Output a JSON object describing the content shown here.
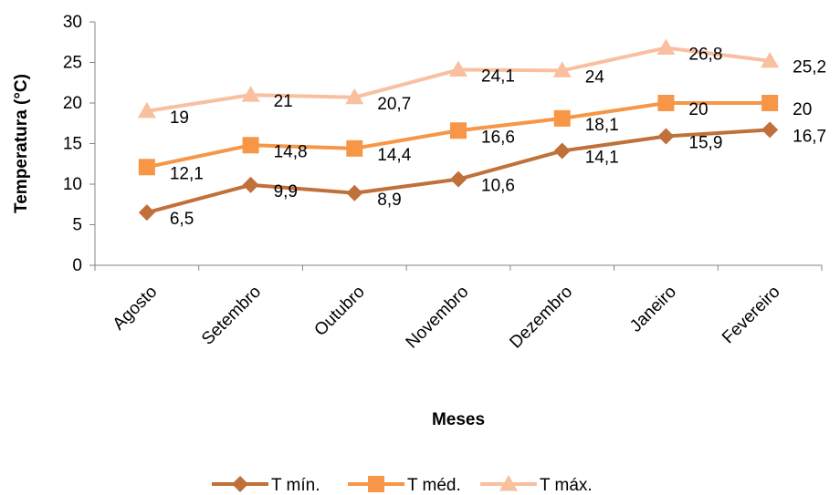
{
  "chart_data": {
    "type": "line",
    "title": "",
    "xlabel": "Meses",
    "ylabel": "Temperatura (°C)",
    "categories": [
      "Agosto",
      "Setembro",
      "Outubro",
      "Novembro",
      "Dezembro",
      "Janeiro",
      "Fevereiro"
    ],
    "ylim": [
      0,
      30
    ],
    "yticks": [
      0,
      5,
      10,
      15,
      20,
      25,
      30
    ],
    "grid": false,
    "legend_position": "bottom",
    "series": [
      {
        "name": "T mín.",
        "values": [
          6.5,
          9.9,
          8.9,
          10.6,
          14.1,
          15.9,
          16.7
        ],
        "labels": [
          "6,5",
          "9,9",
          "8,9",
          "10,6",
          "14,1",
          "15,9",
          "16,7"
        ],
        "color": "#c0703a",
        "marker": "diamond"
      },
      {
        "name": "T méd.",
        "values": [
          12.1,
          14.8,
          14.4,
          16.6,
          18.1,
          20,
          20
        ],
        "labels": [
          "12,1",
          "14,8",
          "14,4",
          "16,6",
          "18,1",
          "20",
          "20"
        ],
        "color": "#f79646",
        "marker": "square"
      },
      {
        "name": "T máx.",
        "values": [
          19,
          21,
          20.7,
          24.1,
          24,
          26.8,
          25.2
        ],
        "labels": [
          "19",
          "21",
          "20,7",
          "24,1",
          "24",
          "26,8",
          "25,2"
        ],
        "color": "#f9c0a0",
        "marker": "triangle"
      }
    ]
  }
}
